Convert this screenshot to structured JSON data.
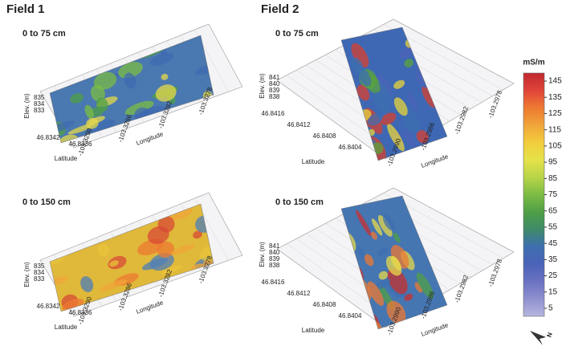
{
  "fields": [
    {
      "title": "Field 1",
      "panels": [
        {
          "depth": "0 to 75 cm"
        },
        {
          "depth": "0 to 150 cm"
        }
      ],
      "elev_label": "Elev. (m)",
      "elev_ticks": [
        "835",
        "834",
        "833"
      ],
      "lat_label": "Latitude",
      "lat_ticks": [
        "46.8342",
        "46.8336"
      ],
      "lon_label": "Longitude",
      "lon_ticks": [
        "-103.3290",
        "-103.3286",
        "-103.3282",
        "-103.3278"
      ]
    },
    {
      "title": "Field 2",
      "panels": [
        {
          "depth": "0 to 75 cm"
        },
        {
          "depth": "0 to 150 cm"
        }
      ],
      "elev_label": "Elev. (m)",
      "elev_ticks": [
        "841",
        "840",
        "839",
        "838"
      ],
      "lat_label": "Latitude",
      "lat_ticks": [
        "46.8416",
        "46.8412",
        "46.8408",
        "46.8404"
      ],
      "lon_label": "Longitude",
      "lon_ticks": [
        "-103.2990",
        "-103.2986",
        "-103.2982",
        "-103.2978"
      ]
    }
  ],
  "colorbar": {
    "unit": "mS/m",
    "ticks": [
      145,
      135,
      125,
      115,
      105,
      95,
      85,
      75,
      65,
      55,
      45,
      35,
      25,
      15,
      5
    ],
    "colors": [
      "#c0282f",
      "#e0443a",
      "#ee7a32",
      "#f0a53a",
      "#f2cd3c",
      "#e5e24a",
      "#b8d448",
      "#7cbc44",
      "#4f9f46",
      "#3f8a6a",
      "#3e6fb0",
      "#4b63b8",
      "#6b72c2",
      "#8f90cf",
      "#b7b6e0"
    ]
  },
  "north_label": "N"
}
